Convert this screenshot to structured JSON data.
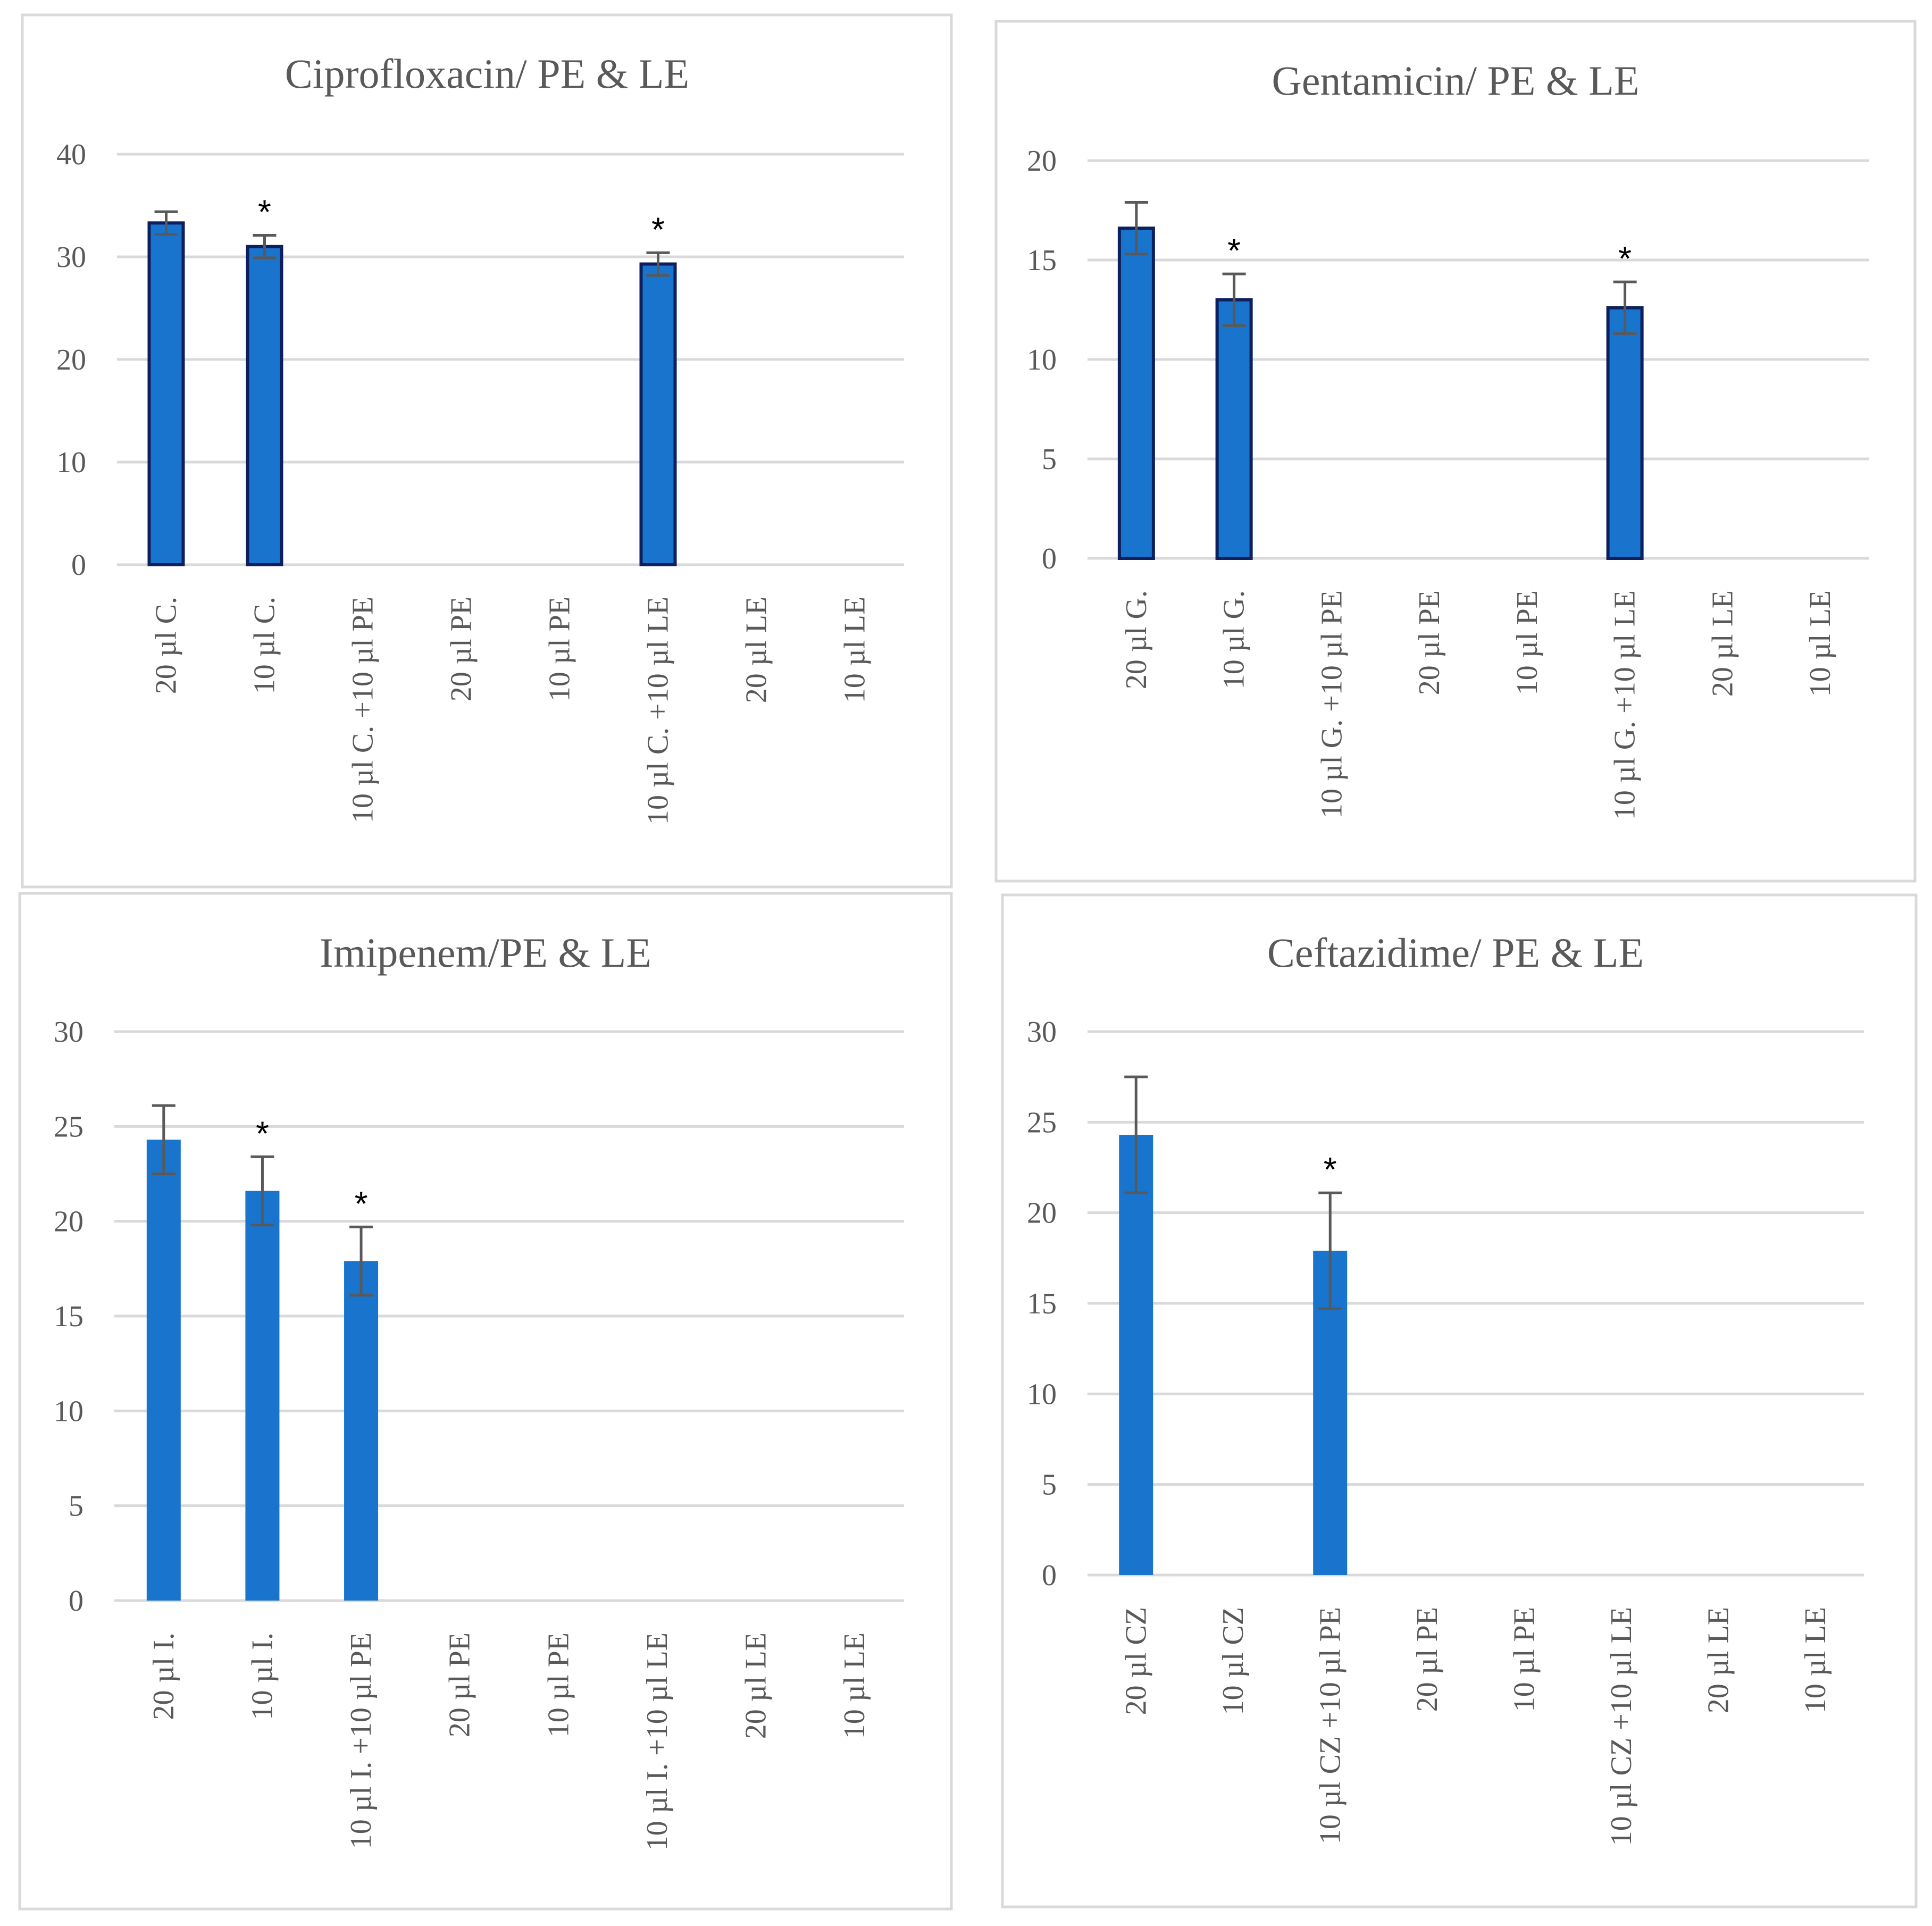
{
  "colors": {
    "bar": "#1874CD",
    "bar_outline": "#0D1F5C",
    "grid": "#D9D9D9",
    "text": "#595959",
    "error_bar": "#595959"
  },
  "chart_data": [
    {
      "type": "bar",
      "title": "Ciprofloxacin/ PE & LE",
      "categories": [
        "20 µl C.",
        "10 µl C.",
        "10 µl C. +10 µl PE",
        "20 µl PE",
        "10 µl PE",
        "10 µl C. +10 µl LE",
        "20 µl LE",
        "10 µl LE"
      ],
      "values": [
        33.3,
        31.0,
        0,
        0,
        0,
        29.3,
        0,
        0
      ],
      "errors": [
        1.1,
        1.1,
        0,
        0,
        0,
        1.1,
        0,
        0
      ],
      "significance": [
        "",
        "*",
        "",
        "",
        "",
        "*",
        "",
        ""
      ],
      "yticks": [
        "0",
        "10",
        "20",
        "30",
        "40"
      ],
      "ylim": [
        0,
        40
      ],
      "outlined": true
    },
    {
      "type": "bar",
      "title": "Gentamicin/ PE & LE",
      "categories": [
        "20 µl G.",
        "10 µl G.",
        "10 µl G. +10 µl PE",
        "20 µl PE",
        "10 µl PE",
        "10 µl G. +10 µl LE",
        "20 µl LE",
        "10 µl LE"
      ],
      "values": [
        16.6,
        13.0,
        0,
        0,
        0,
        12.6,
        0,
        0
      ],
      "errors": [
        1.3,
        1.3,
        0,
        0,
        0,
        1.3,
        0,
        0
      ],
      "significance": [
        "",
        "*",
        "",
        "",
        "",
        "*",
        "",
        ""
      ],
      "yticks": [
        "0",
        "5",
        "10",
        "15",
        "20"
      ],
      "ylim": [
        0,
        20
      ],
      "outlined": true
    },
    {
      "type": "bar",
      "title": "Imipenem/PE & LE",
      "categories": [
        "20 µl I.",
        "10 µl I.",
        "10 µl I. +10 µl PE",
        "20 µl PE",
        "10 µl PE",
        "10 µl I. +10 µl LE",
        "20 µl LE",
        "10 µl LE"
      ],
      "values": [
        24.3,
        21.6,
        17.9,
        0,
        0,
        0,
        0,
        0
      ],
      "errors": [
        1.8,
        1.8,
        1.8,
        0,
        0,
        0,
        0,
        0
      ],
      "significance": [
        "",
        "*",
        "*",
        "",
        "",
        "",
        "",
        ""
      ],
      "yticks": [
        "0",
        "5",
        "10",
        "15",
        "20",
        "25",
        "30"
      ],
      "ylim": [
        0,
        30
      ],
      "outlined": false
    },
    {
      "type": "bar",
      "title": "Ceftazidime/ PE & LE",
      "categories": [
        "20 µl CZ",
        "10 µl CZ",
        "10 µl CZ +10 µl PE",
        "20 µl PE",
        "10 µl PE",
        "10 µl CZ +10 µl LE",
        "20 µl LE",
        "10 µl LE"
      ],
      "values": [
        24.3,
        0,
        17.9,
        0,
        0,
        0,
        0,
        0
      ],
      "errors": [
        3.2,
        0,
        3.2,
        0,
        0,
        0,
        0,
        0
      ],
      "significance": [
        "",
        "",
        "*",
        "",
        "",
        "",
        "",
        ""
      ],
      "yticks": [
        "0",
        "5",
        "10",
        "15",
        "20",
        "25",
        "30"
      ],
      "ylim": [
        0,
        30
      ],
      "outlined": false
    }
  ]
}
